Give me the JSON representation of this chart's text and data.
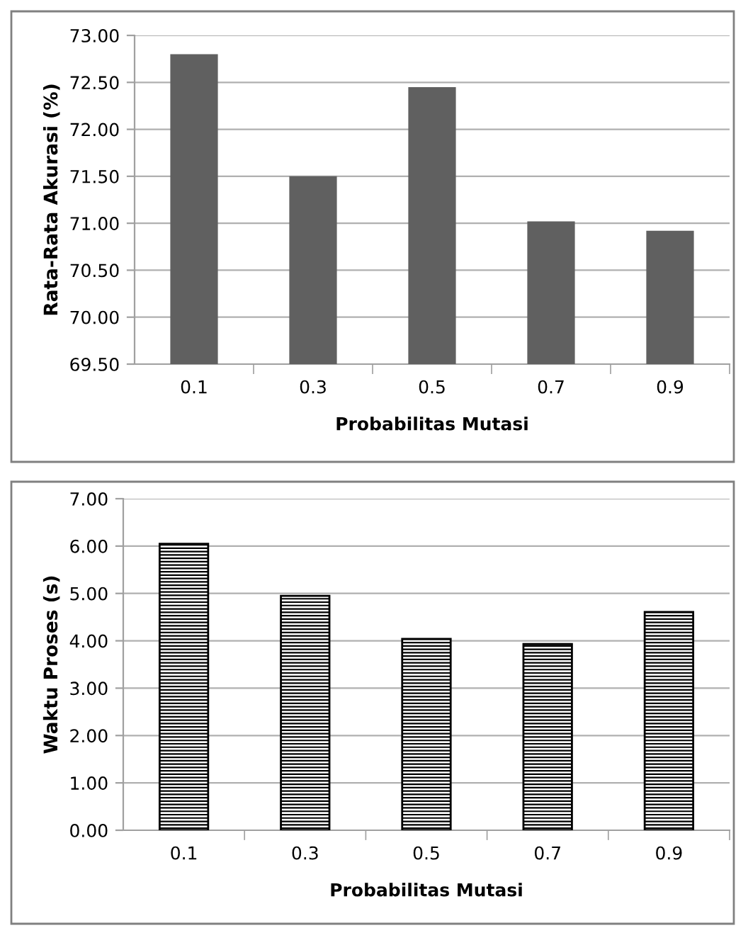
{
  "chart_data": [
    {
      "type": "bar",
      "ylabel": "Rata-Rata Akurasi (%)",
      "xlabel": "Probabilitas Mutasi",
      "categories": [
        "0.1",
        "0.3",
        "0.5",
        "0.7",
        "0.9"
      ],
      "series": [
        {
          "color": "#606060",
          "values": [
            72.8,
            71.5,
            72.45,
            71.02,
            70.92
          ]
        }
      ],
      "ylim": [
        69.5,
        73.0
      ],
      "yticks": [
        {
          "value": 69.5,
          "label": "69.50"
        },
        {
          "value": 70.0,
          "label": "70.00"
        },
        {
          "value": 70.5,
          "label": "70.50"
        },
        {
          "value": 71.0,
          "label": "71.00"
        },
        {
          "value": 71.5,
          "label": "71.50"
        },
        {
          "value": 72.0,
          "label": "72.00"
        },
        {
          "value": 72.5,
          "label": "72.50"
        },
        {
          "value": 73.0,
          "label": "73.00"
        }
      ],
      "grid": "y"
    },
    {
      "type": "bar",
      "ylabel": "Waktu Proses (s)",
      "xlabel": "Probabilitas Mutasi",
      "categories": [
        "0.1",
        "0.3",
        "0.5",
        "0.7",
        "0.9"
      ],
      "series": [
        {
          "color": "#000000",
          "values": [
            6.05,
            4.95,
            4.04,
            3.93,
            4.61
          ]
        }
      ],
      "ylim": [
        0,
        7
      ],
      "yticks": [
        {
          "value": 0,
          "label": "0.00"
        },
        {
          "value": 1,
          "label": "1.00"
        },
        {
          "value": 2,
          "label": "2.00"
        },
        {
          "value": 3,
          "label": "3.00"
        },
        {
          "value": 4,
          "label": "4.00"
        },
        {
          "value": 5,
          "label": "5.00"
        },
        {
          "value": 6,
          "label": "6.00"
        },
        {
          "value": 7,
          "label": "7.00"
        }
      ],
      "grid": "y"
    }
  ]
}
